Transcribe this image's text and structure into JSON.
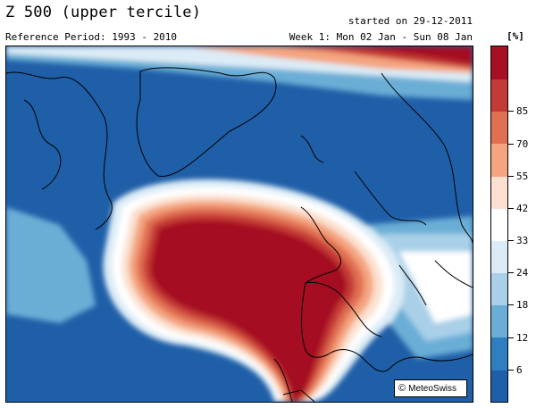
{
  "header": {
    "title": "Z 500 (upper tercile)",
    "reference_period": "Reference Period: 1993 - 2010",
    "started": "started on 29-12-2011",
    "week": "Week 1: Mon 02 Jan - Sun 08 Jan",
    "unit": "[%]"
  },
  "colorbar": {
    "colors": [
      "#1f5fa8",
      "#2f7fc0",
      "#6aaed6",
      "#a9d0e8",
      "#dcecf6",
      "#ffffff",
      "#fbe0cf",
      "#f4a47f",
      "#e07052",
      "#c43a36",
      "#a51122"
    ],
    "ticks": [
      "6",
      "12",
      "18",
      "24",
      "33",
      "42",
      "55",
      "70",
      "85"
    ]
  },
  "credit": {
    "symbol": "©",
    "text": "MeteoSwiss"
  }
}
